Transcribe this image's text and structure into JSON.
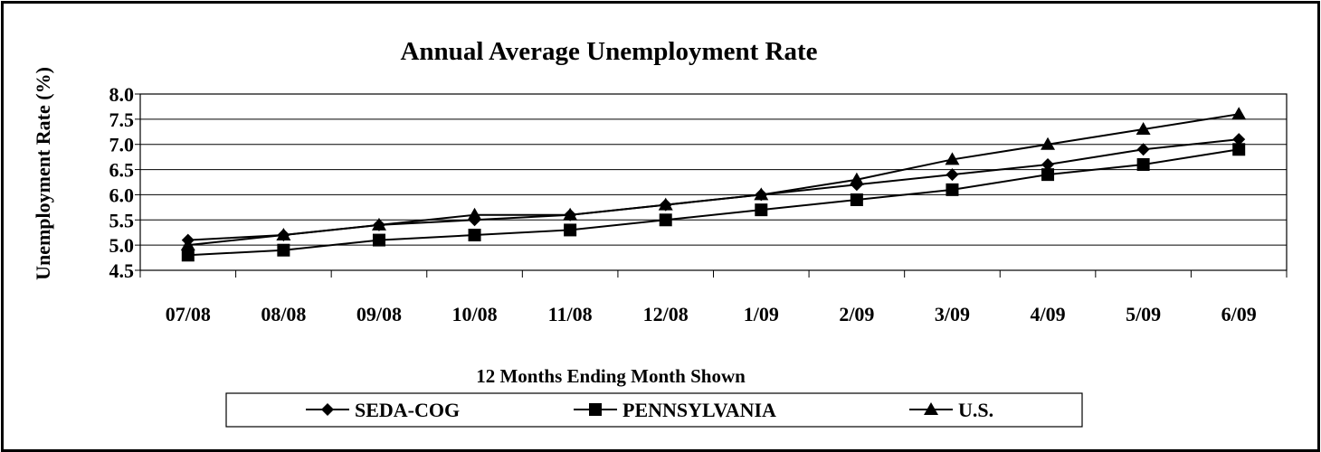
{
  "chart_data": {
    "type": "line",
    "title": "Annual Average Unemployment Rate",
    "xlabel": "12 Months Ending Month Shown",
    "ylabel": "Unemployment  Rate  (%)",
    "categories": [
      "07/08",
      "08/08",
      "09/08",
      "10/08",
      "11/08",
      "12/08",
      "1/09",
      "2/09",
      "3/09",
      "4/09",
      "5/09",
      "6/09"
    ],
    "ylim": [
      4.5,
      8.0
    ],
    "yticks": [
      "4.5",
      "5.0",
      "5.5",
      "6.0",
      "6.5",
      "7.0",
      "7.5",
      "8.0"
    ],
    "grid": true,
    "legend_position": "bottom",
    "series": [
      {
        "name": "SEDA-COG",
        "marker": "diamond",
        "color": "#000000",
        "values": [
          5.1,
          5.2,
          5.4,
          5.5,
          5.6,
          5.8,
          6.0,
          6.2,
          6.4,
          6.6,
          6.9,
          7.1
        ]
      },
      {
        "name": "PENNSYLVANIA",
        "marker": "square",
        "color": "#000000",
        "values": [
          4.8,
          4.9,
          5.1,
          5.2,
          5.3,
          5.5,
          5.7,
          5.9,
          6.1,
          6.4,
          6.6,
          6.9
        ]
      },
      {
        "name": "U.S.",
        "marker": "triangle",
        "color": "#000000",
        "values": [
          5.0,
          5.2,
          5.4,
          5.6,
          5.6,
          5.8,
          6.0,
          6.3,
          6.7,
          7.0,
          7.3,
          7.6
        ]
      }
    ]
  }
}
